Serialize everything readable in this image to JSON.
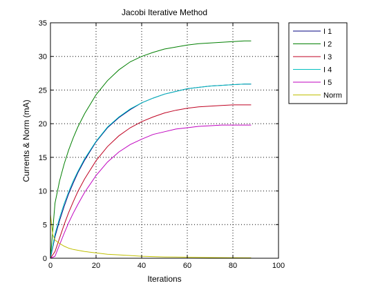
{
  "chart_data": {
    "type": "line",
    "title": "Jacobi Iterative Method",
    "xlabel": "Iterations",
    "ylabel": "Currents & Norm (mA)",
    "xlim": [
      0,
      100
    ],
    "ylim": [
      0,
      35
    ],
    "xticks": [
      "0",
      "20",
      "40",
      "60",
      "80",
      "100"
    ],
    "yticks": [
      "0",
      "5",
      "10",
      "15",
      "20",
      "25",
      "30",
      "35"
    ],
    "grid": true,
    "legend_position": "outside-top-right",
    "series": [
      {
        "name": "I 1",
        "color": "#00007f",
        "x": [
          0,
          2,
          4,
          6,
          8,
          10,
          12,
          15,
          20,
          25,
          30,
          35,
          40,
          45,
          50,
          55,
          60,
          65,
          70,
          75,
          80,
          85,
          88
        ],
        "y": [
          0,
          3.2,
          5.6,
          7.7,
          9.6,
          11.2,
          12.7,
          14.6,
          17.3,
          19.4,
          20.9,
          22.1,
          23.1,
          23.8,
          24.4,
          24.8,
          25.2,
          25.4,
          25.6,
          25.7,
          25.8,
          25.9,
          25.9
        ]
      },
      {
        "name": "I 2",
        "color": "#007f00",
        "x": [
          0,
          2,
          4,
          6,
          8,
          10,
          12,
          15,
          20,
          25,
          30,
          35,
          40,
          45,
          50,
          55,
          60,
          65,
          70,
          75,
          80,
          85,
          88
        ],
        "y": [
          0,
          8.2,
          11.5,
          14.0,
          16.1,
          17.9,
          19.5,
          21.5,
          24.3,
          26.4,
          28.0,
          29.2,
          30.0,
          30.6,
          31.1,
          31.4,
          31.7,
          31.9,
          32.0,
          32.1,
          32.2,
          32.3,
          32.3
        ]
      },
      {
        "name": "I 3",
        "color": "#bf0020",
        "x": [
          0,
          2,
          4,
          6,
          8,
          10,
          12,
          15,
          20,
          25,
          30,
          35,
          40,
          45,
          50,
          55,
          60,
          65,
          70,
          75,
          80,
          85,
          88
        ],
        "y": [
          0,
          1.0,
          3.0,
          5.0,
          6.8,
          8.4,
          9.9,
          11.8,
          14.5,
          16.6,
          18.2,
          19.4,
          20.3,
          21.0,
          21.6,
          22.0,
          22.3,
          22.5,
          22.6,
          22.7,
          22.8,
          22.8,
          22.8
        ]
      },
      {
        "name": "I 4",
        "color": "#00bfbf",
        "x": [
          0,
          2,
          4,
          6,
          8,
          10,
          12,
          15,
          20,
          25,
          30,
          35,
          40,
          45,
          50,
          55,
          60,
          65,
          70,
          75,
          80,
          85,
          88
        ],
        "y": [
          0,
          3.6,
          6.0,
          8.1,
          9.9,
          11.5,
          12.9,
          14.8,
          17.4,
          19.5,
          21.0,
          22.2,
          23.1,
          23.8,
          24.4,
          24.8,
          25.2,
          25.4,
          25.6,
          25.7,
          25.8,
          25.9,
          25.9
        ]
      },
      {
        "name": "I 5",
        "color": "#bf00bf",
        "x": [
          0,
          2,
          4,
          6,
          8,
          10,
          12,
          15,
          20,
          25,
          30,
          35,
          40,
          45,
          50,
          55,
          60,
          65,
          70,
          75,
          80,
          85,
          88
        ],
        "y": [
          0,
          0.3,
          2.0,
          3.7,
          5.3,
          6.7,
          8.0,
          9.8,
          12.3,
          14.3,
          15.8,
          16.9,
          17.7,
          18.4,
          18.8,
          19.2,
          19.4,
          19.6,
          19.7,
          19.8,
          19.8,
          19.8,
          19.8
        ]
      },
      {
        "name": "Norm",
        "color": "#bfbf00",
        "x": [
          0,
          1,
          2,
          4,
          6,
          8,
          10,
          15,
          20,
          25,
          30,
          40,
          50,
          60,
          70,
          80,
          88
        ],
        "y": [
          6.5,
          3.5,
          2.7,
          2.2,
          1.8,
          1.5,
          1.3,
          1.0,
          0.8,
          0.6,
          0.5,
          0.3,
          0.2,
          0.15,
          0.1,
          0.08,
          0.06
        ]
      }
    ]
  }
}
